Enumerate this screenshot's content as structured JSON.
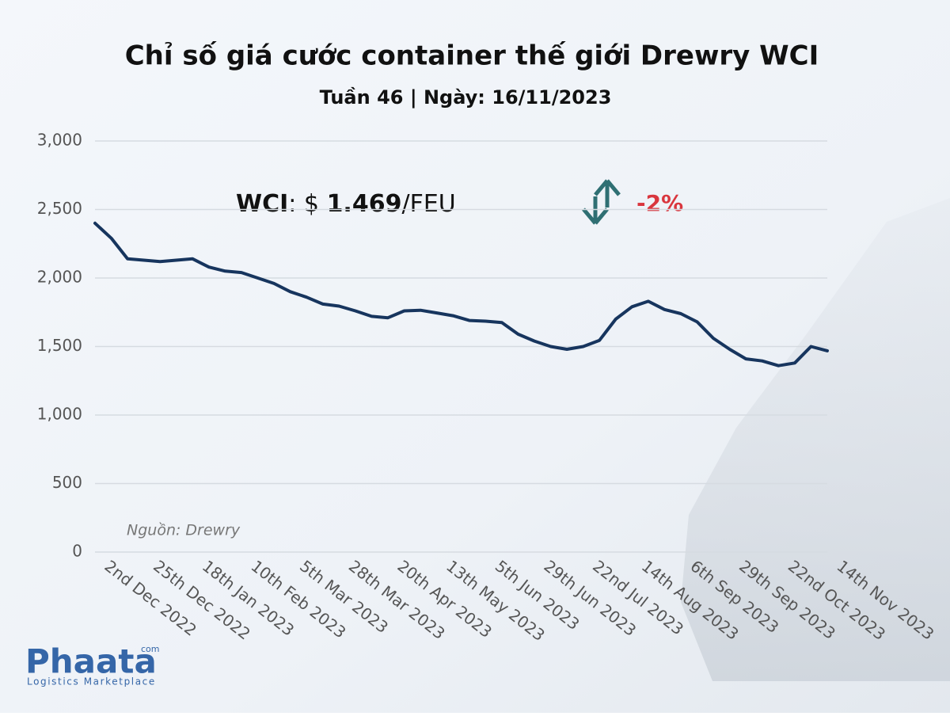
{
  "chart_data": {
    "type": "line",
    "title": "Chỉ số giá cước container thế giới Drewry WCI",
    "subtitle": "Tuần 46 | Ngày: 16/11/2023",
    "headline": {
      "label": "WCI",
      "separator": ": $",
      "value": "1.469",
      "unit": "/FEU"
    },
    "change": "-2%",
    "source": "Nguồn: Drewry",
    "categories": [
      "2nd Dec 2022",
      null,
      null,
      "25th Dec 2022",
      null,
      null,
      "18th Jan 2023",
      null,
      null,
      "10th Feb 2023",
      null,
      null,
      "5th Mar 2023",
      null,
      null,
      "28th Mar 2023",
      null,
      null,
      "20th Apr 2023",
      null,
      null,
      "13th May 2023",
      null,
      null,
      "5th Jun 2023",
      null,
      null,
      "29th Jun 2023",
      null,
      null,
      "22nd Jul 2023",
      null,
      null,
      "14th Aug 2023",
      null,
      null,
      "6th Sep 2023",
      null,
      null,
      "29th Sep 2023",
      null,
      null,
      "22nd Oct 2023",
      null,
      null,
      "14th Nov 2023"
    ],
    "series": [
      {
        "color": "#17355e",
        "values": [
          2400,
          2290,
          2140,
          2130,
          2120,
          2130,
          2140,
          2080,
          2050,
          2040,
          2000,
          1960,
          1900,
          1860,
          1810,
          1795,
          1760,
          1720,
          1710,
          1760,
          1765,
          1745,
          1725,
          1690,
          1685,
          1675,
          1590,
          1540,
          1500,
          1480,
          1500,
          1545,
          1700,
          1790,
          1830,
          1770,
          1740,
          1680,
          1560,
          1480,
          1410,
          1395,
          1360,
          1380,
          1500,
          1469
        ]
      }
    ],
    "ylim": [
      0,
      3000
    ],
    "yticks": [
      0,
      500,
      {
        "value": 1000,
        "label": "1,000"
      },
      {
        "value": 1500,
        "label": "1,500"
      },
      {
        "value": 2000,
        "label": "2,000"
      },
      {
        "value": 2500,
        "label": "2,500"
      },
      {
        "value": 3000,
        "label": "3,000"
      }
    ],
    "grid": true
  },
  "logo": {
    "name": "Phaata",
    "suffix": "com",
    "tagline": "Logistics Marketplace"
  }
}
